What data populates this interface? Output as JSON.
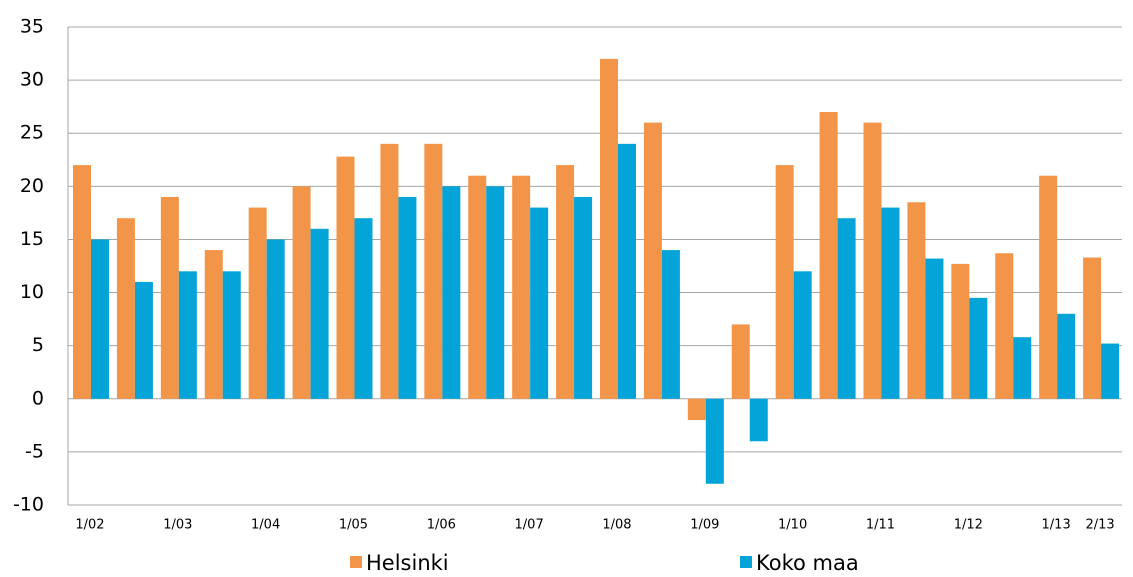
{
  "chart_data": {
    "type": "bar",
    "categories": [
      "1/02",
      null,
      "1/03",
      null,
      "1/04",
      null,
      "1/05",
      null,
      "1/06",
      null,
      "1/07",
      null,
      "1/08",
      null,
      "1/09",
      null,
      "1/10",
      null,
      "1/11",
      null,
      "1/12",
      null,
      "1/13",
      "2/13"
    ],
    "series": [
      {
        "name": "Helsinki",
        "color": "#f39549",
        "values": [
          22,
          17,
          19,
          14,
          18,
          20,
          22.8,
          24,
          24,
          21,
          21,
          22,
          32,
          26,
          -2,
          7,
          22,
          27,
          26,
          18.5,
          12.7,
          13.7,
          21,
          13.3
        ]
      },
      {
        "name": "Koko maa",
        "color": "#04a4d8",
        "values": [
          15,
          11,
          12,
          12,
          15,
          16,
          17,
          19,
          20,
          20,
          18,
          19,
          24,
          14,
          -8,
          -4,
          12,
          17,
          18,
          13.2,
          9.5,
          5.8,
          8,
          5.2
        ]
      }
    ],
    "ylim": [
      -10,
      35
    ],
    "yticks": [
      -10,
      -5,
      0,
      5,
      10,
      15,
      20,
      25,
      30,
      35
    ],
    "grid": true,
    "legend": "bottom"
  }
}
